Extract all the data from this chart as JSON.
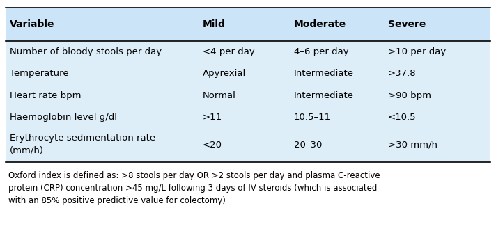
{
  "headers": [
    "Variable",
    "Mild",
    "Moderate",
    "Severe"
  ],
  "rows": [
    [
      "Number of bloody stools per day",
      "<4 per day",
      "4–6 per day",
      ">10 per day"
    ],
    [
      "Temperature",
      "Apyrexial",
      "Intermediate",
      ">37.8"
    ],
    [
      "Heart rate bpm",
      "Normal",
      "Intermediate",
      ">90 bpm"
    ],
    [
      "Haemoglobin level g/dl",
      ">11",
      "10.5–11",
      "<10.5"
    ],
    [
      "Erythrocyte sedimentation rate\n(mm/h)",
      "<20",
      "20–30",
      ">30 mm/h"
    ]
  ],
  "footnote": "Oxford index is defined as: >8 stools per day OR >2 stools per day and plasma C-reactive\nprotein (CRP) concentration >45 mg/L following 3 days of IV steroids (which is associated\nwith an 85% positive predictive value for colectomy)",
  "header_bg": "#cce4f7",
  "table_bg": "#ddeef8",
  "header_font_size": 10,
  "row_font_size": 9.5,
  "footnote_font_size": 8.5,
  "text_color": "#000000",
  "line_color": "#000000",
  "footnote_color": "#000000"
}
